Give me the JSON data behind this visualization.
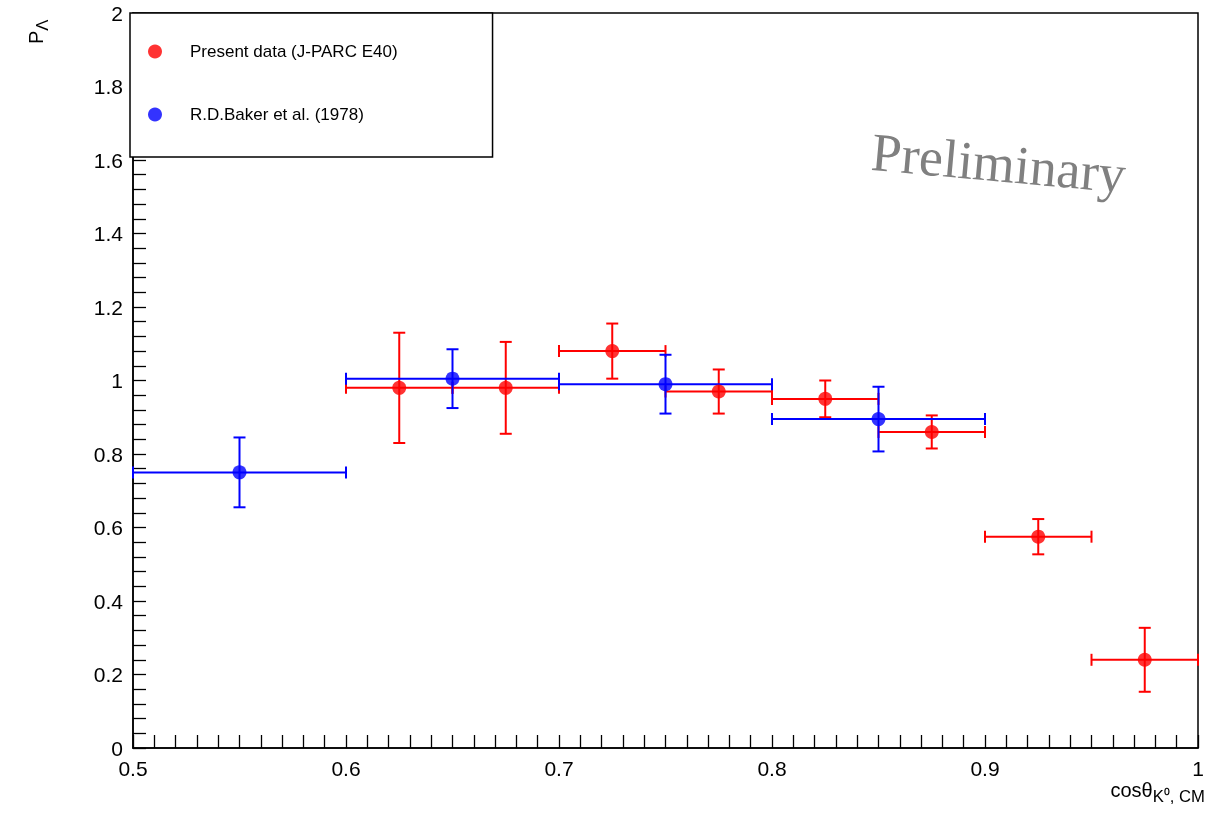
{
  "chart_data": {
    "type": "scatter",
    "xlabel": "cosθ$_{K⁰, CM}$",
    "ylabel": "P$_{Λ}$",
    "annotations": [
      "Preliminary"
    ],
    "series": [
      {
        "name": "Present data (J-PARC E40)",
        "color": "#ff0000",
        "x": [
          0.625,
          0.675,
          0.725,
          0.775,
          0.825,
          0.875,
          0.925,
          0.975
        ],
        "values": [
          0.98,
          0.98,
          1.08,
          0.97,
          0.95,
          0.86,
          0.575,
          0.24
        ],
        "errors": [
          0.15,
          0.125,
          0.075,
          0.06,
          0.05,
          0.045,
          0.048,
          0.087
        ],
        "xerrors": [
          0.025,
          0.025,
          0.025,
          0.025,
          0.025,
          0.025,
          0.025,
          0.025
        ]
      },
      {
        "name": "R.D.Baker et al. (1978)",
        "color": "#0000ff",
        "x": [
          0.55,
          0.65,
          0.75,
          0.85
        ],
        "values": [
          0.75,
          1.005,
          0.99,
          0.895
        ],
        "errors": [
          0.095,
          0.08,
          0.08,
          0.088
        ],
        "xerrors": [
          0.05,
          0.05,
          0.05,
          0.05
        ]
      }
    ],
    "xlim": [
      0.5,
      1
    ],
    "xticks": [
      0.5,
      {
        "value": 0.51,
        "label": null
      },
      {
        "value": 0.52,
        "label": null
      },
      {
        "value": 0.53,
        "label": null
      },
      {
        "value": 0.54,
        "label": null
      },
      {
        "value": 0.55,
        "label": null
      },
      {
        "value": 0.56,
        "label": null
      },
      {
        "value": 0.57,
        "label": null
      },
      {
        "value": 0.58,
        "label": null
      },
      {
        "value": 0.59,
        "label": null
      },
      0.6,
      {
        "value": 0.61,
        "label": null
      },
      {
        "value": 0.62,
        "label": null
      },
      {
        "value": 0.63,
        "label": null
      },
      {
        "value": 0.64,
        "label": null
      },
      {
        "value": 0.65,
        "label": null
      },
      {
        "value": 0.66,
        "label": null
      },
      {
        "value": 0.67,
        "label": null
      },
      {
        "value": 0.68,
        "label": null
      },
      {
        "value": 0.69,
        "label": null
      },
      0.7,
      {
        "value": 0.71,
        "label": null
      },
      {
        "value": 0.72,
        "label": null
      },
      {
        "value": 0.73,
        "label": null
      },
      {
        "value": 0.74,
        "label": null
      },
      {
        "value": 0.75,
        "label": null
      },
      {
        "value": 0.76,
        "label": null
      },
      {
        "value": 0.77,
        "label": null
      },
      {
        "value": 0.78,
        "label": null
      },
      {
        "value": 0.79,
        "label": null
      },
      0.8,
      {
        "value": 0.81,
        "label": null
      },
      {
        "value": 0.82,
        "label": null
      },
      {
        "value": 0.83,
        "label": null
      },
      {
        "value": 0.84,
        "label": null
      },
      {
        "value": 0.85,
        "label": null
      },
      {
        "value": 0.86,
        "label": null
      },
      {
        "value": 0.87,
        "label": null
      },
      {
        "value": 0.88,
        "label": null
      },
      {
        "value": 0.89,
        "label": null
      },
      0.9,
      {
        "value": 0.91,
        "label": null
      },
      {
        "value": 0.92,
        "label": null
      },
      {
        "value": 0.93,
        "label": null
      },
      {
        "value": 0.94,
        "label": null
      },
      {
        "value": 0.95,
        "label": null
      },
      {
        "value": 0.96,
        "label": null
      },
      {
        "value": 0.97,
        "label": null
      },
      {
        "value": 0.98,
        "label": null
      },
      {
        "value": 0.99,
        "label": null
      },
      1
    ],
    "ylim": [
      0,
      2
    ],
    "yticks": [
      0,
      {
        "value": 0.04,
        "label": null
      },
      {
        "value": 0.08,
        "label": null
      },
      {
        "value": 0.12,
        "label": null
      },
      {
        "value": 0.16,
        "label": null
      },
      0.2,
      {
        "value": 0.24,
        "label": null
      },
      {
        "value": 0.28,
        "label": null
      },
      {
        "value": 0.32,
        "label": null
      },
      {
        "value": 0.36,
        "label": null
      },
      0.4,
      {
        "value": 0.44,
        "label": null
      },
      {
        "value": 0.48,
        "label": null
      },
      {
        "value": 0.52,
        "label": null
      },
      {
        "value": 0.56,
        "label": null
      },
      0.6,
      {
        "value": 0.64,
        "label": null
      },
      {
        "value": 0.68,
        "label": null
      },
      {
        "value": 0.72,
        "label": null
      },
      {
        "value": 0.76,
        "label": null
      },
      0.8,
      {
        "value": 0.84,
        "label": null
      },
      {
        "value": 0.88,
        "label": null
      },
      {
        "value": 0.92,
        "label": null
      },
      {
        "value": 0.96,
        "label": null
      },
      1,
      {
        "value": 1.04,
        "label": null
      },
      {
        "value": 1.08,
        "label": null
      },
      {
        "value": 1.12,
        "label": null
      },
      {
        "value": 1.16,
        "label": null
      },
      1.2,
      {
        "value": 1.24,
        "label": null
      },
      {
        "value": 1.28,
        "label": null
      },
      {
        "value": 1.32,
        "label": null
      },
      {
        "value": 1.36,
        "label": null
      },
      1.4,
      {
        "value": 1.44,
        "label": null
      },
      {
        "value": 1.48,
        "label": null
      },
      {
        "value": 1.52,
        "label": null
      },
      {
        "value": 1.56,
        "label": null
      },
      1.6,
      {
        "value": 1.64,
        "label": null
      },
      {
        "value": 1.68,
        "label": null
      },
      {
        "value": 1.72,
        "label": null
      },
      {
        "value": 1.76,
        "label": null
      },
      1.8,
      {
        "value": 1.84,
        "label": null
      },
      {
        "value": 1.88,
        "label": null
      },
      {
        "value": 1.92,
        "label": null
      },
      {
        "value": 1.96,
        "label": null
      },
      2
    ],
    "marker": "circle",
    "grid": false,
    "legend": "top left"
  }
}
